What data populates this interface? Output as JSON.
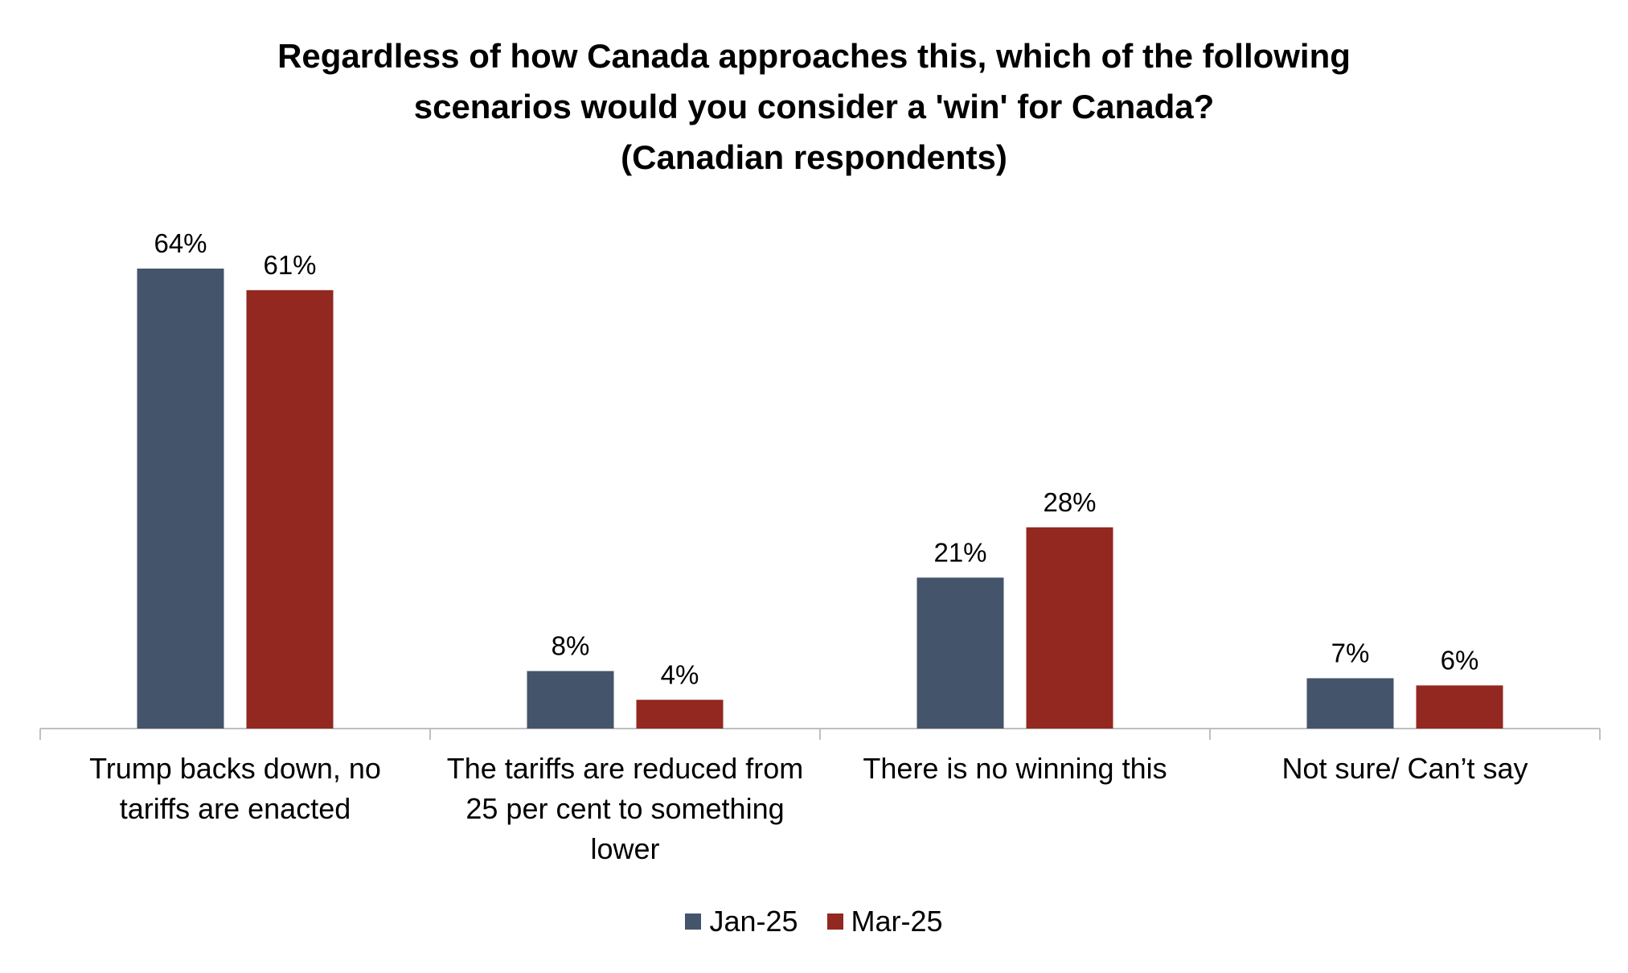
{
  "chart_data": {
    "type": "bar",
    "title_lines": [
      "Regardless of how Canada approaches this, which of the following",
      "scenarios would you consider a 'win' for Canada?",
      "(Canadian respondents)"
    ],
    "categories": [
      [
        "Trump backs down, no",
        "tariffs are enacted"
      ],
      [
        "The tariffs are reduced from",
        "25 per cent to something",
        "lower"
      ],
      [
        "There is no winning this"
      ],
      [
        "Not sure/ Can’t say"
      ]
    ],
    "series": [
      {
        "name": "Jan-25",
        "color": "#44546A",
        "values": [
          64,
          8,
          21,
          7
        ],
        "labels": [
          "64%",
          "8%",
          "21%",
          "7%"
        ]
      },
      {
        "name": "Mar-25",
        "color": "#922820",
        "values": [
          61,
          4,
          28,
          6
        ],
        "labels": [
          "61%",
          "4%",
          "28%",
          "6%"
        ]
      }
    ],
    "ylim": [
      0,
      64
    ],
    "grid": false,
    "legend_position": "bottom"
  }
}
